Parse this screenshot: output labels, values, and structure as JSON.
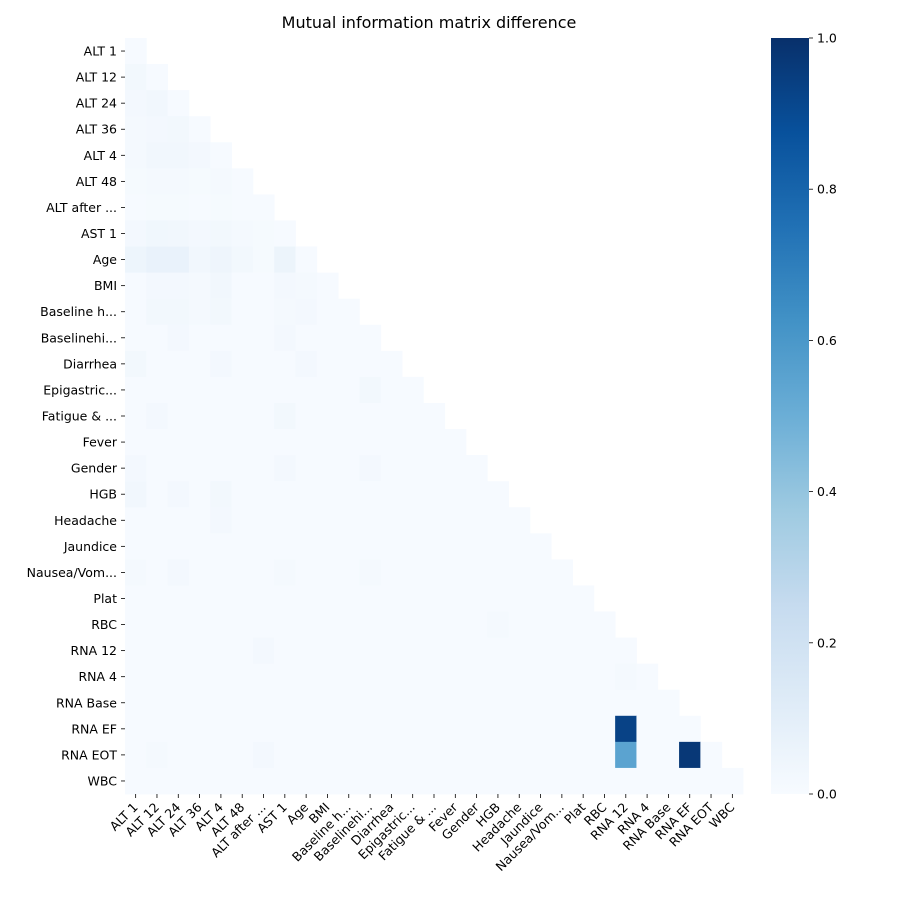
{
  "chart_data": {
    "type": "heatmap",
    "title": "Mutual information matrix difference",
    "mask": "upper-triangle",
    "labels": [
      "ALT 1",
      "ALT 12",
      "ALT 24",
      "ALT 36",
      "ALT 4",
      "ALT 48",
      "ALT after ...",
      "AST 1",
      "Age",
      "BMI",
      "Baseline h...",
      "Baselinehi...",
      "Diarrhea",
      "Epigastric...",
      "Fatigue & ...",
      "Fever",
      "Gender",
      "HGB",
      "Headache",
      "Jaundice",
      "Nausea/Vom...",
      "Plat",
      "RBC",
      "RNA 12",
      "RNA 4",
      "RNA Base",
      "RNA EF",
      "RNA EOT",
      "WBC"
    ],
    "colorbar": {
      "min": 0.0,
      "max": 1.0,
      "ticks": [
        "0.0",
        "0.2",
        "0.4",
        "0.6",
        "0.8",
        "1.0"
      ],
      "colormap": "Blues"
    },
    "baseline_value": 0.005,
    "cells": [
      {
        "row": 1,
        "col": 0,
        "value": 0.025
      },
      {
        "row": 2,
        "col": 0,
        "value": 0.02
      },
      {
        "row": 2,
        "col": 1,
        "value": 0.03
      },
      {
        "row": 3,
        "col": 0,
        "value": 0.015
      },
      {
        "row": 3,
        "col": 1,
        "value": 0.02
      },
      {
        "row": 3,
        "col": 2,
        "value": 0.025
      },
      {
        "row": 4,
        "col": 0,
        "value": 0.015
      },
      {
        "row": 4,
        "col": 1,
        "value": 0.03
      },
      {
        "row": 4,
        "col": 2,
        "value": 0.03
      },
      {
        "row": 4,
        "col": 3,
        "value": 0.02
      },
      {
        "row": 5,
        "col": 0,
        "value": 0.01
      },
      {
        "row": 5,
        "col": 1,
        "value": 0.015
      },
      {
        "row": 5,
        "col": 2,
        "value": 0.015
      },
      {
        "row": 5,
        "col": 3,
        "value": 0.01
      },
      {
        "row": 5,
        "col": 4,
        "value": 0.015
      },
      {
        "row": 6,
        "col": 1,
        "value": 0.01
      },
      {
        "row": 6,
        "col": 2,
        "value": 0.01
      },
      {
        "row": 6,
        "col": 4,
        "value": 0.01
      },
      {
        "row": 7,
        "col": 0,
        "value": 0.02
      },
      {
        "row": 7,
        "col": 1,
        "value": 0.035
      },
      {
        "row": 7,
        "col": 2,
        "value": 0.03
      },
      {
        "row": 7,
        "col": 3,
        "value": 0.02
      },
      {
        "row": 7,
        "col": 4,
        "value": 0.025
      },
      {
        "row": 7,
        "col": 5,
        "value": 0.015
      },
      {
        "row": 7,
        "col": 6,
        "value": 0.01
      },
      {
        "row": 8,
        "col": 0,
        "value": 0.05
      },
      {
        "row": 8,
        "col": 1,
        "value": 0.07
      },
      {
        "row": 8,
        "col": 2,
        "value": 0.07
      },
      {
        "row": 8,
        "col": 3,
        "value": 0.03
      },
      {
        "row": 8,
        "col": 4,
        "value": 0.045
      },
      {
        "row": 8,
        "col": 5,
        "value": 0.025
      },
      {
        "row": 8,
        "col": 6,
        "value": 0.01
      },
      {
        "row": 8,
        "col": 7,
        "value": 0.055
      },
      {
        "row": 9,
        "col": 1,
        "value": 0.02
      },
      {
        "row": 9,
        "col": 2,
        "value": 0.02
      },
      {
        "row": 9,
        "col": 3,
        "value": 0.015
      },
      {
        "row": 9,
        "col": 4,
        "value": 0.03
      },
      {
        "row": 9,
        "col": 7,
        "value": 0.02
      },
      {
        "row": 9,
        "col": 8,
        "value": 0.015
      },
      {
        "row": 10,
        "col": 1,
        "value": 0.025
      },
      {
        "row": 10,
        "col": 2,
        "value": 0.025
      },
      {
        "row": 10,
        "col": 3,
        "value": 0.015
      },
      {
        "row": 10,
        "col": 4,
        "value": 0.025
      },
      {
        "row": 10,
        "col": 7,
        "value": 0.015
      },
      {
        "row": 10,
        "col": 8,
        "value": 0.02
      },
      {
        "row": 11,
        "col": 2,
        "value": 0.02
      },
      {
        "row": 11,
        "col": 7,
        "value": 0.02
      },
      {
        "row": 12,
        "col": 0,
        "value": 0.025
      },
      {
        "row": 12,
        "col": 4,
        "value": 0.02
      },
      {
        "row": 12,
        "col": 8,
        "value": 0.02
      },
      {
        "row": 13,
        "col": 11,
        "value": 0.025
      },
      {
        "row": 14,
        "col": 1,
        "value": 0.02
      },
      {
        "row": 14,
        "col": 7,
        "value": 0.025
      },
      {
        "row": 16,
        "col": 0,
        "value": 0.02
      },
      {
        "row": 16,
        "col": 7,
        "value": 0.02
      },
      {
        "row": 16,
        "col": 11,
        "value": 0.02
      },
      {
        "row": 17,
        "col": 0,
        "value": 0.03
      },
      {
        "row": 17,
        "col": 2,
        "value": 0.02
      },
      {
        "row": 17,
        "col": 4,
        "value": 0.025
      },
      {
        "row": 18,
        "col": 4,
        "value": 0.02
      },
      {
        "row": 20,
        "col": 0,
        "value": 0.015
      },
      {
        "row": 20,
        "col": 2,
        "value": 0.02
      },
      {
        "row": 20,
        "col": 7,
        "value": 0.015
      },
      {
        "row": 20,
        "col": 11,
        "value": 0.015
      },
      {
        "row": 22,
        "col": 17,
        "value": 0.015
      },
      {
        "row": 23,
        "col": 6,
        "value": 0.02
      },
      {
        "row": 24,
        "col": 23,
        "value": 0.015
      },
      {
        "row": 26,
        "col": 23,
        "value": 0.93
      },
      {
        "row": 27,
        "col": 23,
        "value": 0.55
      },
      {
        "row": 27,
        "col": 26,
        "value": 0.97
      },
      {
        "row": 27,
        "col": 6,
        "value": 0.02
      },
      {
        "row": 27,
        "col": 1,
        "value": 0.015
      }
    ]
  }
}
